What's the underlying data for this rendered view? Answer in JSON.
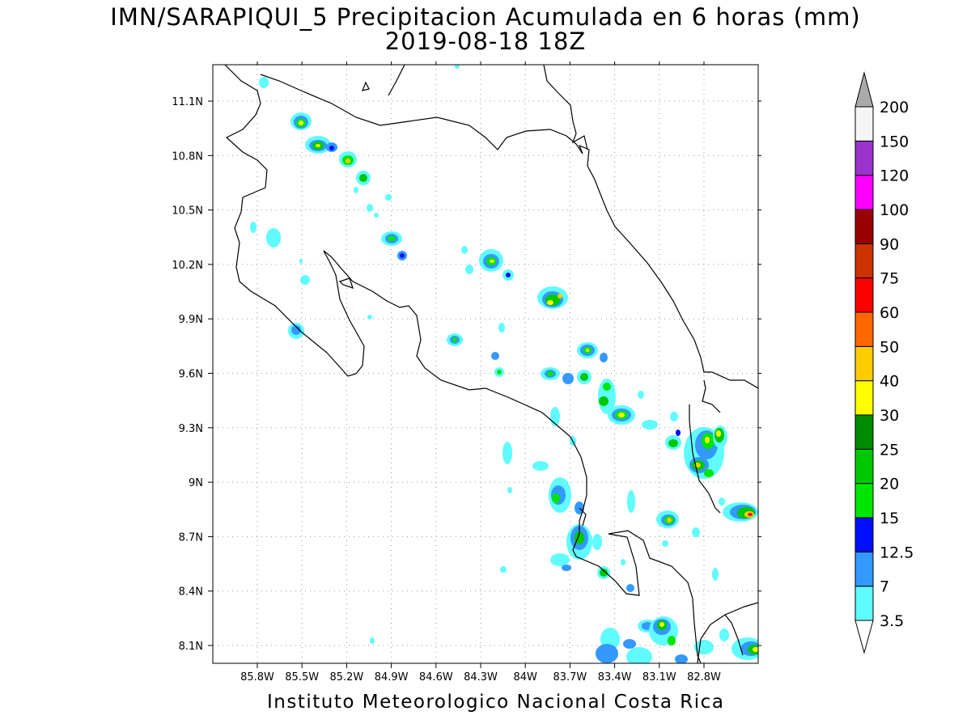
{
  "title": {
    "line1": "IMN/SARAPIQUI_5 Precipitacion Acumulada en 6 horas (mm)",
    "line2": "2019-08-18 18Z"
  },
  "footer": "Instituto Meteorologico Nacional Costa Rica",
  "map": {
    "lon_range": [
      -85.95,
      -82.55
    ],
    "lat_range": [
      8.0,
      11.25
    ],
    "x_ticks": [
      "85.8W",
      "85.5W",
      "85.2W",
      "84.9W",
      "84.6W",
      "84.3W",
      "84W",
      "83.7W",
      "83.4W",
      "83.1W",
      "82.8W"
    ],
    "y_ticks": [
      "11.1N",
      "10.8N",
      "10.5N",
      "10.2N",
      "9.9N",
      "9.6N",
      "9.3N",
      "9N",
      "8.7N",
      "8.4N",
      "8.1N"
    ],
    "grid": "dotted"
  },
  "colorbar": {
    "labels": [
      "3.5",
      "7",
      "12.5",
      "15",
      "20",
      "25",
      "30",
      "40",
      "50",
      "60",
      "75",
      "90",
      "100",
      "120",
      "150",
      "200"
    ],
    "colors": [
      "#5ffbff",
      "#3399ff",
      "#0010ff",
      "#00e600",
      "#00c800",
      "#008c00",
      "#ffff00",
      "#ffcc00",
      "#ff6600",
      "#ff0000",
      "#cc3300",
      "#990000",
      "#ff00ff",
      "#9933cc",
      "#f5f5f5"
    ],
    "top_arrow_color": "#aaaaaa",
    "bottom_arrow_color": "#ffffff"
  }
}
